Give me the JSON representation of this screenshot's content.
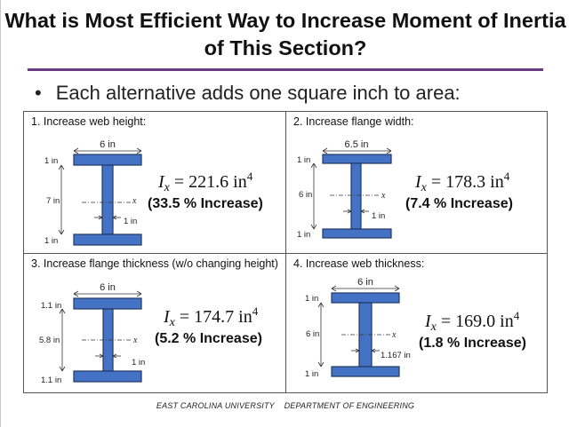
{
  "title": "What is Most Efficient Way to Increase Moment of Inertia of This Section?",
  "bullet": "Each alternative adds one square inch to area:",
  "axis_label": "x",
  "panels": [
    {
      "heading": "1.  Increase web height:",
      "width_label": "6 in",
      "top_flange_label": "1 in",
      "web_height_label": "7 in",
      "web_thickness_label": "1 in",
      "bottom_flange_label": "1 in",
      "formula": {
        "symbol": "I",
        "sub": "x",
        "eq": " = 221.6 in",
        "sup": "4"
      },
      "increase": "(33.5 % Increase)"
    },
    {
      "heading": "2.  Increase flange width:",
      "width_label": "6.5 in",
      "top_flange_label": "1 in",
      "web_height_label": "6 in",
      "web_thickness_label": "1 in",
      "bottom_flange_label": "1 in",
      "formula": {
        "symbol": "I",
        "sub": "x",
        "eq": " = 178.3 in",
        "sup": "4"
      },
      "increase": "(7.4 % Increase)"
    },
    {
      "heading": "3.  Increase flange thickness (w/o changing height)",
      "width_label": "6 in",
      "top_flange_label": "1.1 in",
      "web_height_label": "5.8 in",
      "web_thickness_label": "1 in",
      "bottom_flange_label": "1.1 in",
      "formula": {
        "symbol": "I",
        "sub": "x",
        "eq": " = 174.7 in",
        "sup": "4"
      },
      "increase": "(5.2 % Increase)"
    },
    {
      "heading": "4.  Increase web thickness:",
      "width_label": "6 in",
      "top_flange_label": "1 in",
      "web_height_label": "6 in",
      "web_thickness_label": "1.167 in",
      "bottom_flange_label": "1 in",
      "formula": {
        "symbol": "I",
        "sub": "x",
        "eq": " = 169.0 in",
        "sup": "4"
      },
      "increase": "(1.8 % Increase)"
    }
  ],
  "footer": {
    "left": "EAST CAROLINA UNIVERSITY",
    "right": "DEPARTMENT OF ENGINEERING"
  }
}
